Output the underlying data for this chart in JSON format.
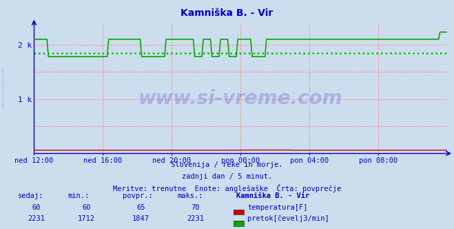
{
  "title": "Kamniška B. - Vir",
  "title_color": "#0000cc",
  "bg_color": "#ccdded",
  "plot_bg_color": "#ccdded",
  "grid_color": "#ff8080",
  "x_labels": [
    "ned 12:00",
    "ned 16:00",
    "ned 20:00",
    "pon 00:00",
    "pon 04:00",
    "pon 08:00"
  ],
  "x_ticks": [
    0,
    48,
    96,
    144,
    192,
    240
  ],
  "y_ticks": [
    0,
    1000,
    2000
  ],
  "y_tick_labels": [
    "",
    "1 k",
    "2 k"
  ],
  "ylim": [
    0,
    2400
  ],
  "xlim": [
    0,
    288
  ],
  "avg_pretok": 1847,
  "subtitle1": "Slovenija / reke in morje.",
  "subtitle2": "zadnji dan / 5 minut.",
  "subtitle3": "Meritve: trenutne  Enote: anglešaške  Črta: povprečje",
  "table_header": [
    "sedaj:",
    "min.:",
    "povpr.:",
    "maks.:",
    "Kamniška B. - Vir"
  ],
  "table_temp": [
    "60",
    "60",
    "65",
    "70"
  ],
  "table_pretok": [
    "2231",
    "1712",
    "1847",
    "2231"
  ],
  "label_temp": "temperatura[F]",
  "label_pretok": "pretok[čevelj3/min]",
  "color_temp": "#cc0000",
  "color_pretok": "#00aa00",
  "color_avg": "#00bb00",
  "color_axis": "#0000cc",
  "color_text": "#0000cc",
  "watermark": "www.si-vreme.com",
  "watermark_color": "#0000cc",
  "watermark_alpha": 0.18,
  "sidebar_text": "www.si-vreme.com",
  "sidebar_color": "#0000cc",
  "sidebar_alpha": 0.18
}
